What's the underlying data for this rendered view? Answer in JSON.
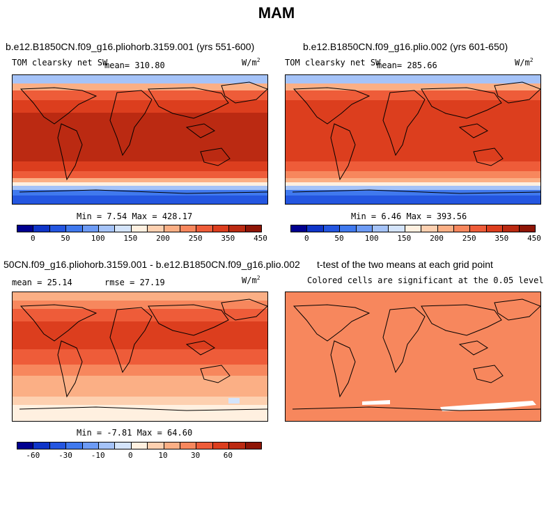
{
  "page": {
    "title": "MAM"
  },
  "panels": [
    {
      "title": "b.e12.B1850CN.f09_g16.pliohorb.3159.001 (yrs 551-600)",
      "variable": "TOM clearsky net SW",
      "mean_label": "mean=",
      "mean_value": "310.80",
      "units_base": "W/m",
      "units_exp": "2",
      "stats": "Min =   7.54 Max = 428.17"
    },
    {
      "title": "b.e12.B1850CN.f09_g16.plio.002 (yrs 601-650)",
      "variable": "TOM clearsky net SW",
      "mean_label": "mean=",
      "mean_value": "285.66",
      "units_base": "W/m",
      "units_exp": "2",
      "stats": "Min =   6.46 Max = 393.56"
    },
    {
      "title": "50CN.f09_g16.pliohorb.3159.001 - b.e12.B1850CN.f09_g16.plio.002",
      "mean_text": "mean =  25.14",
      "rmse_text": "rmse =  27.19",
      "units_base": "W/m",
      "units_exp": "2",
      "stats": "Min =  -7.81 Max =  64.60"
    },
    {
      "title": "t-test of the two means at each grid point",
      "subtitle": "Colored cells are significant at the 0.05 level"
    }
  ],
  "chart_data": [
    {
      "type": "heatmap",
      "title": "b.e12.B1850CN.f09_g16.pliohorb.3159.001 (yrs 551-600)",
      "variable": "TOM clearsky net SW",
      "units": "W/m2",
      "mean": 310.8,
      "min": 7.54,
      "max": 428.17,
      "colorbar_ticks": [
        "0",
        "50",
        "100",
        "150",
        "200",
        "250",
        "350",
        "450"
      ]
    },
    {
      "type": "heatmap",
      "title": "b.e12.B1850CN.f09_g16.plio.002 (yrs 601-650)",
      "variable": "TOM clearsky net SW",
      "units": "W/m2",
      "mean": 285.66,
      "min": 6.46,
      "max": 393.56,
      "colorbar_ticks": [
        "0",
        "50",
        "100",
        "150",
        "200",
        "250",
        "350",
        "450"
      ]
    },
    {
      "type": "heatmap",
      "title": "50CN.f09_g16.pliohorb.3159.001 - b.e12.B1850CN.f09_g16.plio.002",
      "units": "W/m2",
      "mean": 25.14,
      "rmse": 27.19,
      "min": -7.81,
      "max": 64.6,
      "colorbar_ticks": [
        "-60",
        "-30",
        "-10",
        "0",
        "10",
        "30",
        "60"
      ]
    },
    {
      "type": "heatmap",
      "title": "t-test of the two means at each grid point",
      "subtitle": "Colored cells are significant at the 0.05 level"
    }
  ],
  "colorbar_colors": [
    "#00008f",
    "#0f35c8",
    "#2456e0",
    "#4079ee",
    "#6d9bf5",
    "#a5c3f8",
    "#d4e4fb",
    "#fff0e0",
    "#fdd0b0",
    "#fbaf85",
    "#f7875d",
    "#ee5c39",
    "#dc3e1e",
    "#bb2a12",
    "#8e1506"
  ],
  "colorbar_ticks_abs": [
    "0",
    "50",
    "100",
    "150",
    "200",
    "250",
    "350",
    "450"
  ],
  "colorbar_ticks_diff": [
    "-60",
    "-30",
    "-10",
    "0",
    "10",
    "30",
    "60"
  ]
}
